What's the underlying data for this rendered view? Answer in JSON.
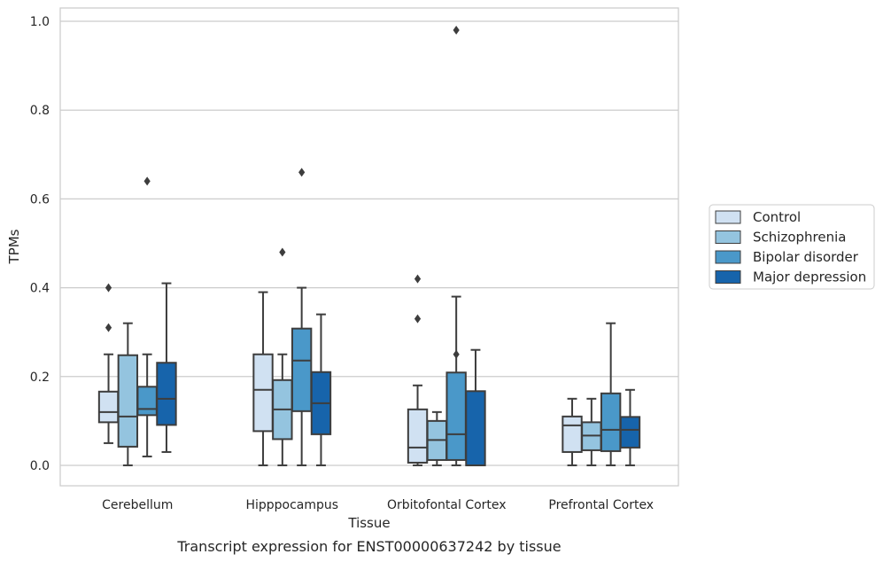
{
  "caption": "Transcript expression for ENST00000637242 by tissue",
  "chart_data": {
    "type": "box",
    "xlabel": "Tissue",
    "ylabel": "TPMs",
    "ylim": [
      -0.046,
      1.03
    ],
    "yticks": [
      "0.0",
      "0.2",
      "0.4",
      "0.6",
      "0.8",
      "1.0"
    ],
    "grid": "horizontal",
    "legend_position": "right",
    "categories": [
      "Cerebellum",
      "Hipppocampus",
      "Orbitofontal Cortex",
      "Prefrontal Cortex"
    ],
    "series": [
      {
        "name": "Control",
        "color": "#d0e1f2",
        "boxes": [
          {
            "whislo": 0.05,
            "q1": 0.097,
            "med": 0.12,
            "q3": 0.166,
            "whishi": 0.25,
            "fliers": [
              0.31,
              0.4
            ]
          },
          {
            "whislo": 0.0,
            "q1": 0.077,
            "med": 0.17,
            "q3": 0.25,
            "whishi": 0.39,
            "fliers": []
          },
          {
            "whislo": 0.0,
            "q1": 0.006,
            "med": 0.04,
            "q3": 0.126,
            "whishi": 0.18,
            "fliers": [
              0.33,
              0.42
            ]
          },
          {
            "whislo": 0.0,
            "q1": 0.03,
            "med": 0.09,
            "q3": 0.11,
            "whishi": 0.15,
            "fliers": []
          }
        ]
      },
      {
        "name": "Schizophrenia",
        "color": "#94c4df",
        "boxes": [
          {
            "whislo": 0.0,
            "q1": 0.042,
            "med": 0.11,
            "q3": 0.248,
            "whishi": 0.32,
            "fliers": []
          },
          {
            "whislo": 0.0,
            "q1": 0.059,
            "med": 0.126,
            "q3": 0.192,
            "whishi": 0.25,
            "fliers": [
              0.48
            ]
          },
          {
            "whislo": 0.0,
            "q1": 0.012,
            "med": 0.057,
            "q3": 0.1,
            "whishi": 0.12,
            "fliers": []
          },
          {
            "whislo": 0.0,
            "q1": 0.034,
            "med": 0.067,
            "q3": 0.097,
            "whishi": 0.15,
            "fliers": []
          }
        ]
      },
      {
        "name": "Bipolar disorder",
        "color": "#4a98c9",
        "boxes": [
          {
            "whislo": 0.02,
            "q1": 0.113,
            "med": 0.127,
            "q3": 0.177,
            "whishi": 0.25,
            "fliers": [
              0.64
            ]
          },
          {
            "whislo": 0.0,
            "q1": 0.122,
            "med": 0.236,
            "q3": 0.308,
            "whishi": 0.4,
            "fliers": [
              0.66
            ]
          },
          {
            "whislo": 0.0,
            "q1": 0.012,
            "med": 0.07,
            "q3": 0.209,
            "whishi": 0.38,
            "fliers": [
              0.25,
              0.98
            ]
          },
          {
            "whislo": 0.0,
            "q1": 0.032,
            "med": 0.08,
            "q3": 0.162,
            "whishi": 0.32,
            "fliers": []
          }
        ]
      },
      {
        "name": "Major depression",
        "color": "#1764ab",
        "boxes": [
          {
            "whislo": 0.03,
            "q1": 0.091,
            "med": 0.15,
            "q3": 0.231,
            "whishi": 0.41,
            "fliers": []
          },
          {
            "whislo": 0.0,
            "q1": 0.07,
            "med": 0.14,
            "q3": 0.21,
            "whishi": 0.34,
            "fliers": []
          },
          {
            "whislo": 0.0,
            "q1": 0.0,
            "med": 0.0,
            "q3": 0.167,
            "whishi": 0.26,
            "fliers": []
          },
          {
            "whislo": 0.0,
            "q1": 0.04,
            "med": 0.08,
            "q3": 0.109,
            "whishi": 0.17,
            "fliers": []
          }
        ]
      }
    ]
  }
}
